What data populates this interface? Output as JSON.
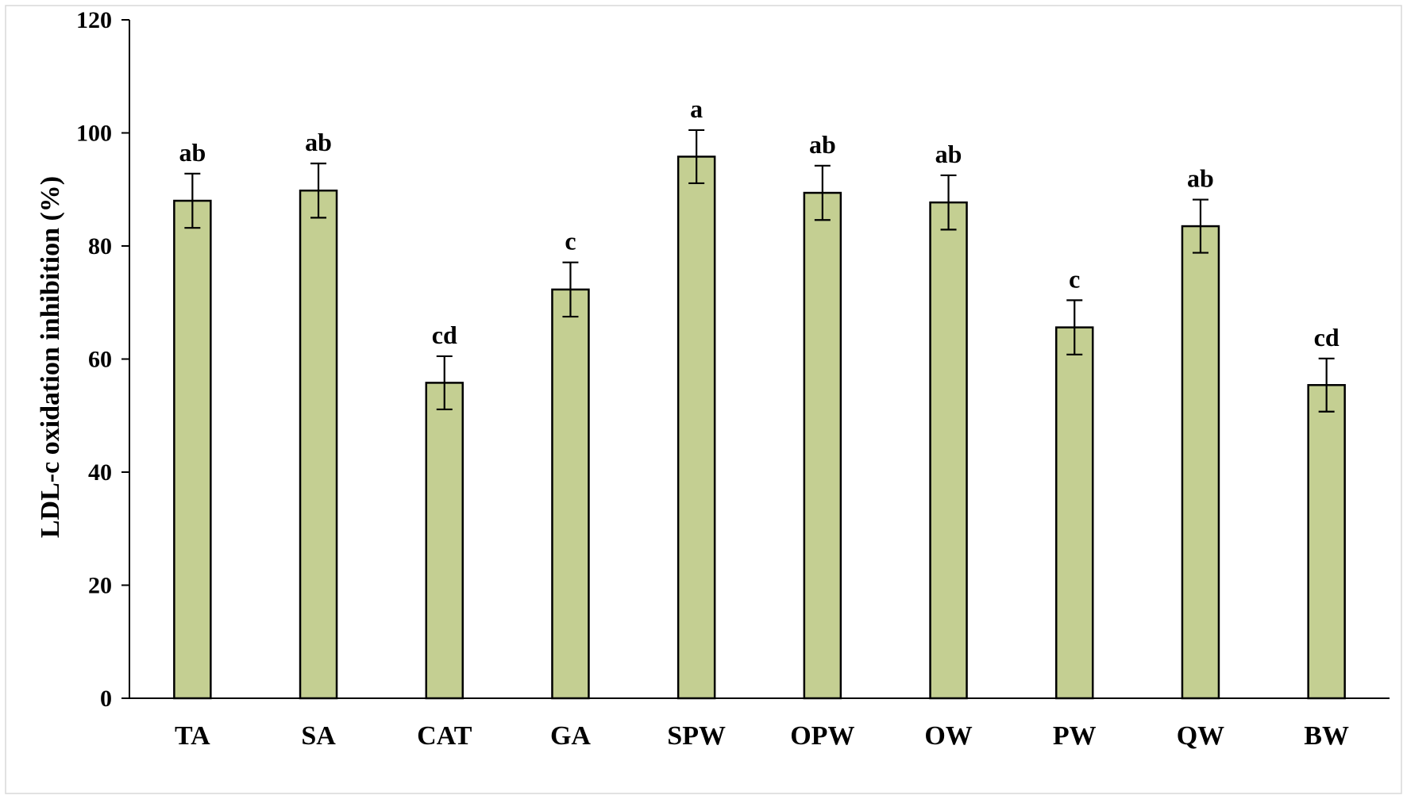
{
  "chart_data": {
    "type": "bar",
    "title": "",
    "xlabel": "",
    "ylabel": "LDL-c oxidation inhibition (%)",
    "ylim": [
      0,
      120
    ],
    "yticks": [
      0,
      20,
      40,
      60,
      80,
      100,
      120
    ],
    "grid": false,
    "legend": "none",
    "bar_color": "#c4cf92",
    "bar_stroke": "#000000",
    "categories": [
      "TA",
      "SA",
      "CAT",
      "GA",
      "SPW",
      "OPW",
      "OW",
      "PW",
      "QW",
      "BW"
    ],
    "values": [
      88,
      89.8,
      55.8,
      72.3,
      95.8,
      89.4,
      87.7,
      65.6,
      83.5,
      55.4
    ],
    "errors": [
      4.8,
      4.8,
      4.7,
      4.8,
      4.7,
      4.8,
      4.8,
      4.8,
      4.7,
      4.7
    ],
    "significance_letters": [
      "ab",
      "ab",
      "cd",
      "c",
      "a",
      "ab",
      "ab",
      "c",
      "ab",
      "cd"
    ]
  }
}
